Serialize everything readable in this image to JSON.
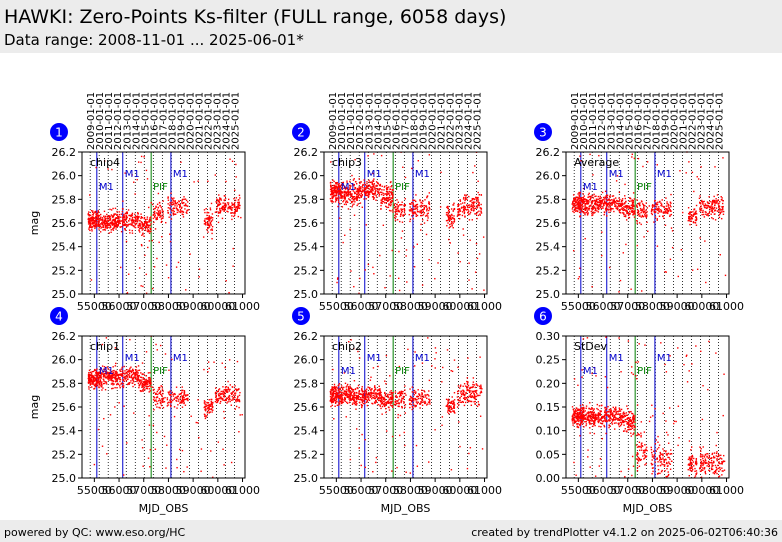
{
  "header": {
    "title": "HAWKI: Zero-Points Ks-filter (FULL range, 6058 days)",
    "subtitle": "Data range: 2008-11-01 ... 2025-06-01*"
  },
  "footer": {
    "left": "powered by QC: www.eso.org/HC",
    "right": "created by trendPlotter v4.1.2 on 2025-06-02T06:40:36"
  },
  "colors": {
    "points": "#ff0000",
    "m1_line": "#0000cc",
    "pif_line": "#008000",
    "year_line": "#000000",
    "badge": "#0000ff",
    "badge_text": "#ffffff"
  },
  "chart_data": {
    "type": "scatter",
    "x_label": "MJD_OBS",
    "x_range": [
      54500,
      61100
    ],
    "x_ticks": [
      55000,
      56000,
      57000,
      58000,
      59000,
      60000,
      61000
    ],
    "x_tick_labels": [
      "55000",
      "56000",
      "57000",
      "58000",
      "59000",
      "60000",
      "61000"
    ],
    "date_labels": [
      "2009-01-01",
      "2010-01-01",
      "2011-01-01",
      "2012-01-01",
      "2013-01-01",
      "2014-01-01",
      "2015-01-01",
      "2016-01-01",
      "2017-01-01",
      "2018-01-01",
      "2019-01-01",
      "2020-01-01",
      "2021-01-01",
      "2022-01-01",
      "2023-01-01",
      "2024-01-01",
      "2025-01-01"
    ],
    "date_mjd": [
      54832,
      55197,
      55562,
      55927,
      56293,
      56658,
      57023,
      57388,
      57754,
      58119,
      58484,
      58849,
      59215,
      59580,
      59945,
      60310,
      60676
    ],
    "markers": [
      {
        "label": "M1",
        "mjd": 55100,
        "type": "M1"
      },
      {
        "label": "M1",
        "mjd": 56150,
        "type": "M1"
      },
      {
        "label": "PIF",
        "mjd": 57300,
        "type": "PIF"
      },
      {
        "label": "M1",
        "mjd": 58100,
        "type": "M1"
      }
    ],
    "panels": [
      {
        "number": "1",
        "name": "chip4",
        "ylabel": "mag",
        "ylim": [
          25.0,
          26.2
        ],
        "yticks": [
          25.0,
          25.2,
          25.4,
          25.6,
          25.8,
          26.0,
          26.2
        ],
        "ytick_labels": [
          "25.0",
          "25.2",
          "25.4",
          "25.6",
          "25.8",
          "26.0",
          "26.2"
        ],
        "show_xlabel": false,
        "segments": [
          {
            "x": [
              54750,
              55200
            ],
            "y": 25.62,
            "spread": 0.04,
            "n": 150
          },
          {
            "x": [
              55200,
              55900
            ],
            "y": 25.61,
            "spread": 0.04,
            "n": 160
          },
          {
            "x": [
              55900,
              56800
            ],
            "y": 25.62,
            "spread": 0.04,
            "n": 160
          },
          {
            "x": [
              56800,
              57300
            ],
            "y": 25.58,
            "spread": 0.04,
            "n": 100
          },
          {
            "x": [
              57350,
              57800
            ],
            "y": 25.68,
            "spread": 0.05,
            "n": 60
          },
          {
            "x": [
              57950,
              58800
            ],
            "y": 25.73,
            "spread": 0.04,
            "n": 100
          },
          {
            "x": [
              59450,
              59800
            ],
            "y": 25.62,
            "spread": 0.04,
            "n": 60
          },
          {
            "x": [
              59900,
              60900
            ],
            "y": 25.74,
            "spread": 0.04,
            "n": 140
          }
        ],
        "outliers": [
          {
            "x": [
              54750,
              61000
            ],
            "y": [
              25.0,
              26.2
            ],
            "n": 90
          }
        ]
      },
      {
        "number": "2",
        "name": "chip3",
        "ylabel": "",
        "ylim": [
          25.0,
          26.2
        ],
        "yticks": [
          25.0,
          25.2,
          25.4,
          25.6,
          25.8,
          26.0,
          26.2
        ],
        "ytick_labels": [
          "25.0",
          "25.2",
          "25.4",
          "25.6",
          "25.8",
          "26.0",
          "26.2"
        ],
        "show_xlabel": false,
        "segments": [
          {
            "x": [
              54750,
              55200
            ],
            "y": 25.86,
            "spread": 0.04,
            "n": 150
          },
          {
            "x": [
              55200,
              55900
            ],
            "y": 25.85,
            "spread": 0.05,
            "n": 160
          },
          {
            "x": [
              55900,
              56800
            ],
            "y": 25.88,
            "spread": 0.04,
            "n": 160
          },
          {
            "x": [
              56800,
              57300
            ],
            "y": 25.82,
            "spread": 0.05,
            "n": 100
          },
          {
            "x": [
              57350,
              57800
            ],
            "y": 25.7,
            "spread": 0.05,
            "n": 60
          },
          {
            "x": [
              57950,
              58800
            ],
            "y": 25.72,
            "spread": 0.04,
            "n": 100
          },
          {
            "x": [
              59450,
              59800
            ],
            "y": 25.65,
            "spread": 0.05,
            "n": 60
          },
          {
            "x": [
              59900,
              60900
            ],
            "y": 25.73,
            "spread": 0.05,
            "n": 140
          }
        ],
        "outliers": [
          {
            "x": [
              54750,
              61000
            ],
            "y": [
              25.0,
              26.2
            ],
            "n": 110
          }
        ]
      },
      {
        "number": "3",
        "name": "Average",
        "ylabel": "",
        "ylim": [
          25.0,
          26.2
        ],
        "yticks": [
          25.0,
          25.2,
          25.4,
          25.6,
          25.8,
          26.0,
          26.2
        ],
        "ytick_labels": [
          "25.0",
          "25.2",
          "25.4",
          "25.6",
          "25.8",
          "26.0",
          "26.2"
        ],
        "show_xlabel": false,
        "segments": [
          {
            "x": [
              54750,
              55200
            ],
            "y": 25.77,
            "spread": 0.04,
            "n": 150
          },
          {
            "x": [
              55200,
              55900
            ],
            "y": 25.76,
            "spread": 0.04,
            "n": 160
          },
          {
            "x": [
              55900,
              56800
            ],
            "y": 25.76,
            "spread": 0.04,
            "n": 160
          },
          {
            "x": [
              56800,
              57300
            ],
            "y": 25.72,
            "spread": 0.04,
            "n": 100
          },
          {
            "x": [
              57350,
              57800
            ],
            "y": 25.7,
            "spread": 0.05,
            "n": 60
          },
          {
            "x": [
              57950,
              58800
            ],
            "y": 25.72,
            "spread": 0.04,
            "n": 100
          },
          {
            "x": [
              59450,
              59800
            ],
            "y": 25.66,
            "spread": 0.04,
            "n": 60
          },
          {
            "x": [
              59900,
              60900
            ],
            "y": 25.73,
            "spread": 0.04,
            "n": 140
          }
        ],
        "outliers": [
          {
            "x": [
              54750,
              61000
            ],
            "y": [
              25.0,
              26.2
            ],
            "n": 80
          }
        ]
      },
      {
        "number": "4",
        "name": "chip1",
        "ylabel": "mag",
        "ylim": [
          25.0,
          26.2
        ],
        "yticks": [
          25.0,
          25.2,
          25.4,
          25.6,
          25.8,
          26.0,
          26.2
        ],
        "ytick_labels": [
          "25.0",
          "25.2",
          "25.4",
          "25.6",
          "25.8",
          "26.0",
          "26.2"
        ],
        "show_xlabel": true,
        "segments": [
          {
            "x": [
              54750,
              55200
            ],
            "y": 25.84,
            "spread": 0.04,
            "n": 150
          },
          {
            "x": [
              55200,
              55900
            ],
            "y": 25.86,
            "spread": 0.04,
            "n": 160
          },
          {
            "x": [
              55900,
              56800
            ],
            "y": 25.86,
            "spread": 0.04,
            "n": 160
          },
          {
            "x": [
              56800,
              57300
            ],
            "y": 25.8,
            "spread": 0.04,
            "n": 100
          },
          {
            "x": [
              57350,
              57800
            ],
            "y": 25.68,
            "spread": 0.05,
            "n": 60
          },
          {
            "x": [
              57950,
              58800
            ],
            "y": 25.68,
            "spread": 0.04,
            "n": 100
          },
          {
            "x": [
              59450,
              59800
            ],
            "y": 25.6,
            "spread": 0.04,
            "n": 60
          },
          {
            "x": [
              59900,
              60900
            ],
            "y": 25.7,
            "spread": 0.04,
            "n": 140
          }
        ],
        "outliers": [
          {
            "x": [
              54750,
              61000
            ],
            "y": [
              25.0,
              26.2
            ],
            "n": 90
          }
        ]
      },
      {
        "number": "5",
        "name": "chip2",
        "ylabel": "",
        "ylim": [
          25.0,
          26.2
        ],
        "yticks": [
          25.0,
          25.2,
          25.4,
          25.6,
          25.8,
          26.0,
          26.2
        ],
        "ytick_labels": [
          "25.0",
          "25.2",
          "25.4",
          "25.6",
          "25.8",
          "26.0",
          "26.2"
        ],
        "show_xlabel": true,
        "segments": [
          {
            "x": [
              54750,
              55200
            ],
            "y": 25.7,
            "spread": 0.04,
            "n": 150
          },
          {
            "x": [
              55200,
              55900
            ],
            "y": 25.7,
            "spread": 0.04,
            "n": 160
          },
          {
            "x": [
              55900,
              56800
            ],
            "y": 25.7,
            "spread": 0.04,
            "n": 160
          },
          {
            "x": [
              56800,
              57300
            ],
            "y": 25.66,
            "spread": 0.04,
            "n": 100
          },
          {
            "x": [
              57350,
              57800
            ],
            "y": 25.66,
            "spread": 0.05,
            "n": 60
          },
          {
            "x": [
              57950,
              58800
            ],
            "y": 25.66,
            "spread": 0.04,
            "n": 100
          },
          {
            "x": [
              59450,
              59800
            ],
            "y": 25.62,
            "spread": 0.04,
            "n": 60
          },
          {
            "x": [
              59900,
              60900
            ],
            "y": 25.72,
            "spread": 0.05,
            "n": 140
          }
        ],
        "outliers": [
          {
            "x": [
              54750,
              61000
            ],
            "y": [
              25.0,
              26.2
            ],
            "n": 90
          }
        ]
      },
      {
        "number": "6",
        "name": "StDev",
        "ylabel": "",
        "ylim": [
          0.0,
          0.3
        ],
        "yticks": [
          0.0,
          0.05,
          0.1,
          0.15,
          0.2,
          0.25,
          0.3
        ],
        "ytick_labels": [
          "0.00",
          "0.05",
          "0.10",
          "0.15",
          "0.20",
          "0.25",
          "0.30"
        ],
        "show_xlabel": true,
        "segments": [
          {
            "x": [
              54750,
              55200
            ],
            "y": 0.13,
            "spread": 0.01,
            "n": 150
          },
          {
            "x": [
              55200,
              55900
            ],
            "y": 0.13,
            "spread": 0.01,
            "n": 160
          },
          {
            "x": [
              55900,
              56800
            ],
            "y": 0.13,
            "spread": 0.01,
            "n": 160
          },
          {
            "x": [
              56800,
              57300
            ],
            "y": 0.12,
            "spread": 0.01,
            "n": 100
          },
          {
            "x": [
              57350,
              57800
            ],
            "y": 0.06,
            "spread": 0.02,
            "n": 60
          },
          {
            "x": [
              57950,
              58800
            ],
            "y": 0.04,
            "spread": 0.02,
            "n": 100
          },
          {
            "x": [
              59450,
              59800
            ],
            "y": 0.03,
            "spread": 0.015,
            "n": 60
          },
          {
            "x": [
              59900,
              60900
            ],
            "y": 0.03,
            "spread": 0.015,
            "n": 140
          }
        ],
        "outliers": [
          {
            "x": [
              54750,
              61000
            ],
            "y": [
              0.0,
              0.3
            ],
            "n": 110
          }
        ]
      }
    ]
  }
}
